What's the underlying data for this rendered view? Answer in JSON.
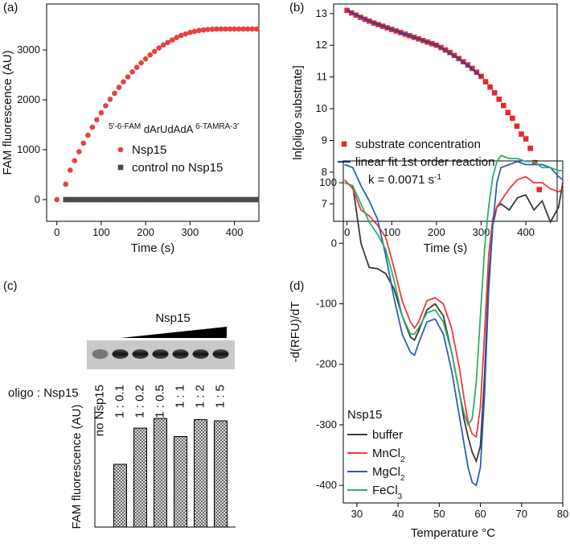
{
  "chart_data": [
    {
      "type": "scatter",
      "panel_label": "(a)",
      "xlabel": "Time (s)",
      "ylabel": "FAM fluorescence (AU)",
      "xlim": [
        -23,
        455
      ],
      "ylim": [
        -435,
        3920
      ],
      "xticks": [
        0,
        100,
        200,
        300,
        400
      ],
      "yticks": [
        0,
        1000,
        2000,
        3000
      ],
      "legend_title": [
        {
          "text": "5′-6-FAM",
          "sup": true
        },
        {
          "text": " dArUdAdA "
        },
        {
          "text": "6-TAMRA-3′",
          "sup": true
        }
      ],
      "series": [
        {
          "name": "Nsp15",
          "color": "#e8413f",
          "marker": "circle",
          "x": [
            0,
            20,
            30,
            40,
            50,
            60,
            70,
            80,
            90,
            100,
            110,
            120,
            130,
            140,
            150,
            160,
            170,
            180,
            190,
            200,
            210,
            220,
            230,
            240,
            250,
            260,
            270,
            280,
            290,
            300,
            310,
            320,
            330,
            340,
            350,
            360,
            370,
            380,
            390,
            400,
            410,
            420,
            430,
            440,
            450
          ],
          "values": [
            0,
            310,
            590,
            780,
            960,
            1130,
            1290,
            1450,
            1600,
            1740,
            1880,
            2010,
            2130,
            2250,
            2360,
            2460,
            2560,
            2650,
            2740,
            2820,
            2900,
            2970,
            3040,
            3100,
            3150,
            3200,
            3250,
            3290,
            3320,
            3350,
            3370,
            3390,
            3400,
            3410,
            3415,
            3420,
            3420,
            3420,
            3420,
            3420,
            3420,
            3420,
            3420,
            3420,
            3420
          ]
        },
        {
          "name": "control no Nsp15",
          "color": "#4a4a4a",
          "marker": "square",
          "x": [
            20,
            30,
            40,
            50,
            60,
            70,
            80,
            90,
            100,
            110,
            120,
            130,
            140,
            150,
            160,
            170,
            180,
            190,
            200,
            210,
            220,
            230,
            240,
            250,
            260,
            270,
            280,
            290,
            300,
            310,
            320,
            330,
            340,
            350,
            360,
            370,
            380,
            390,
            400,
            410,
            420,
            430,
            440,
            450
          ],
          "values": [
            0,
            0,
            0,
            0,
            0,
            0,
            0,
            0,
            0,
            0,
            0,
            0,
            0,
            0,
            0,
            0,
            0,
            0,
            0,
            0,
            0,
            0,
            0,
            0,
            0,
            0,
            0,
            0,
            0,
            0,
            0,
            0,
            0,
            0,
            0,
            0,
            0,
            0,
            0,
            0,
            0,
            0,
            0,
            0
          ]
        }
      ]
    },
    {
      "type": "scatter",
      "panel_label": "(b)",
      "xlabel": "Time (s)",
      "ylabel": "ln[oligo substrate]",
      "xlim": [
        -30,
        470
      ],
      "ylim": [
        6.45,
        13.3
      ],
      "xticks": [
        0,
        100,
        200,
        300,
        400
      ],
      "yticks": [
        7,
        8,
        9,
        10,
        11,
        12,
        13
      ],
      "annotation": {
        "text": "k = 0.0071 s",
        "sup": "-1"
      },
      "series": [
        {
          "name": "substrate concentration",
          "color": "#e8272a",
          "marker": "square",
          "x": [
            0,
            10,
            20,
            30,
            40,
            50,
            60,
            70,
            80,
            90,
            100,
            110,
            120,
            130,
            140,
            150,
            160,
            170,
            180,
            190,
            200,
            210,
            220,
            230,
            240,
            250,
            260,
            270,
            280,
            290,
            300,
            310,
            320,
            330,
            340,
            350,
            360,
            370,
            380,
            390,
            400,
            410,
            420,
            430
          ],
          "values": [
            13.1,
            13.02,
            12.95,
            12.88,
            12.82,
            12.76,
            12.7,
            12.65,
            12.6,
            12.55,
            12.5,
            12.45,
            12.4,
            12.35,
            12.3,
            12.25,
            12.2,
            12.15,
            12.1,
            12.05,
            12.0,
            11.93,
            11.85,
            11.77,
            11.68,
            11.58,
            11.48,
            11.38,
            11.27,
            11.15,
            11.02,
            10.85,
            10.68,
            10.5,
            10.3,
            10.1,
            9.88,
            9.7,
            9.45,
            9.2,
            9.05,
            8.75,
            8.3,
            7.45
          ]
        },
        {
          "name": "linear fit 1st order reaction",
          "color": "#2146a8",
          "marker": "line",
          "x": [
            0,
            50,
            100,
            150,
            200,
            250,
            300
          ],
          "values": [
            13.1,
            12.76,
            12.5,
            12.25,
            12.0,
            11.58,
            11.02
          ]
        }
      ]
    },
    {
      "type": "bar",
      "panel_label": "(c)",
      "ylabel": "FAM fluorescence (AU)",
      "gel_label": "Nsp15",
      "row_label": "oligo : Nsp15",
      "ylim": [
        0,
        1
      ],
      "categories": [
        "no Nsp15",
        "1 : 0.1",
        "1 : 0.2",
        "1 : 0.5",
        "1 : 1",
        "1 : 2",
        "1 : 5"
      ],
      "values": [
        0,
        0.52,
        0.82,
        0.9,
        0.75,
        0.89,
        0.88
      ]
    },
    {
      "type": "line",
      "panel_label": "(d)",
      "xlabel": "Temperature °C",
      "ylabel": "-d(RFU)/dT",
      "legend_title": "Nsp15",
      "xlim": [
        26.7,
        80
      ],
      "ylim": [
        -429,
        136
      ],
      "xticks": [
        30,
        40,
        50,
        60,
        70,
        80
      ],
      "yticks": [
        -400,
        -300,
        -200,
        -100,
        0,
        100
      ],
      "x": [
        27,
        29,
        31,
        33,
        35,
        37,
        39,
        41,
        43,
        44,
        45,
        47,
        49,
        51,
        53,
        55,
        56,
        57,
        58,
        59,
        60,
        61,
        62,
        63,
        64,
        65,
        67,
        69,
        71,
        73,
        75,
        77,
        79,
        80
      ],
      "series": [
        {
          "name": "buffer",
          "color": "#3a3a3a",
          "values": [
            100,
            95,
            0,
            -40,
            -42,
            -50,
            -75,
            -120,
            -155,
            -160,
            -145,
            -110,
            -100,
            -120,
            -180,
            -250,
            -290,
            -320,
            -345,
            -360,
            -335,
            -220,
            -60,
            30,
            60,
            65,
            55,
            75,
            80,
            55,
            70,
            35,
            60,
            100
          ]
        },
        {
          "name": "MnCl2",
          "color": "#ee3b3b",
          "values": [
            105,
            90,
            55,
            45,
            30,
            10,
            -40,
            -95,
            -130,
            -140,
            -130,
            -95,
            -90,
            -100,
            -140,
            -210,
            -255,
            -295,
            -315,
            -320,
            -270,
            -150,
            -20,
            40,
            60,
            70,
            90,
            105,
            110,
            100,
            100,
            90,
            85,
            90
          ]
        },
        {
          "name": "MgCl2",
          "color": "#2d5fb5",
          "values": [
            130,
            125,
            95,
            70,
            40,
            -20,
            -90,
            -150,
            -180,
            -185,
            -165,
            -130,
            -125,
            -150,
            -210,
            -290,
            -330,
            -370,
            -395,
            -400,
            -370,
            -250,
            -80,
            30,
            100,
            125,
            130,
            135,
            130,
            130,
            130,
            125,
            110,
            105
          ]
        },
        {
          "name": "FeCl3",
          "color": "#2fae6a",
          "values": [
            100,
            95,
            65,
            35,
            15,
            -10,
            -60,
            -120,
            -150,
            -150,
            -140,
            -115,
            -110,
            -130,
            -180,
            -250,
            -280,
            -300,
            -290,
            -230,
            -120,
            -10,
            60,
            110,
            135,
            145,
            140,
            140,
            135,
            135,
            125,
            125,
            120,
            120
          ]
        }
      ]
    }
  ]
}
